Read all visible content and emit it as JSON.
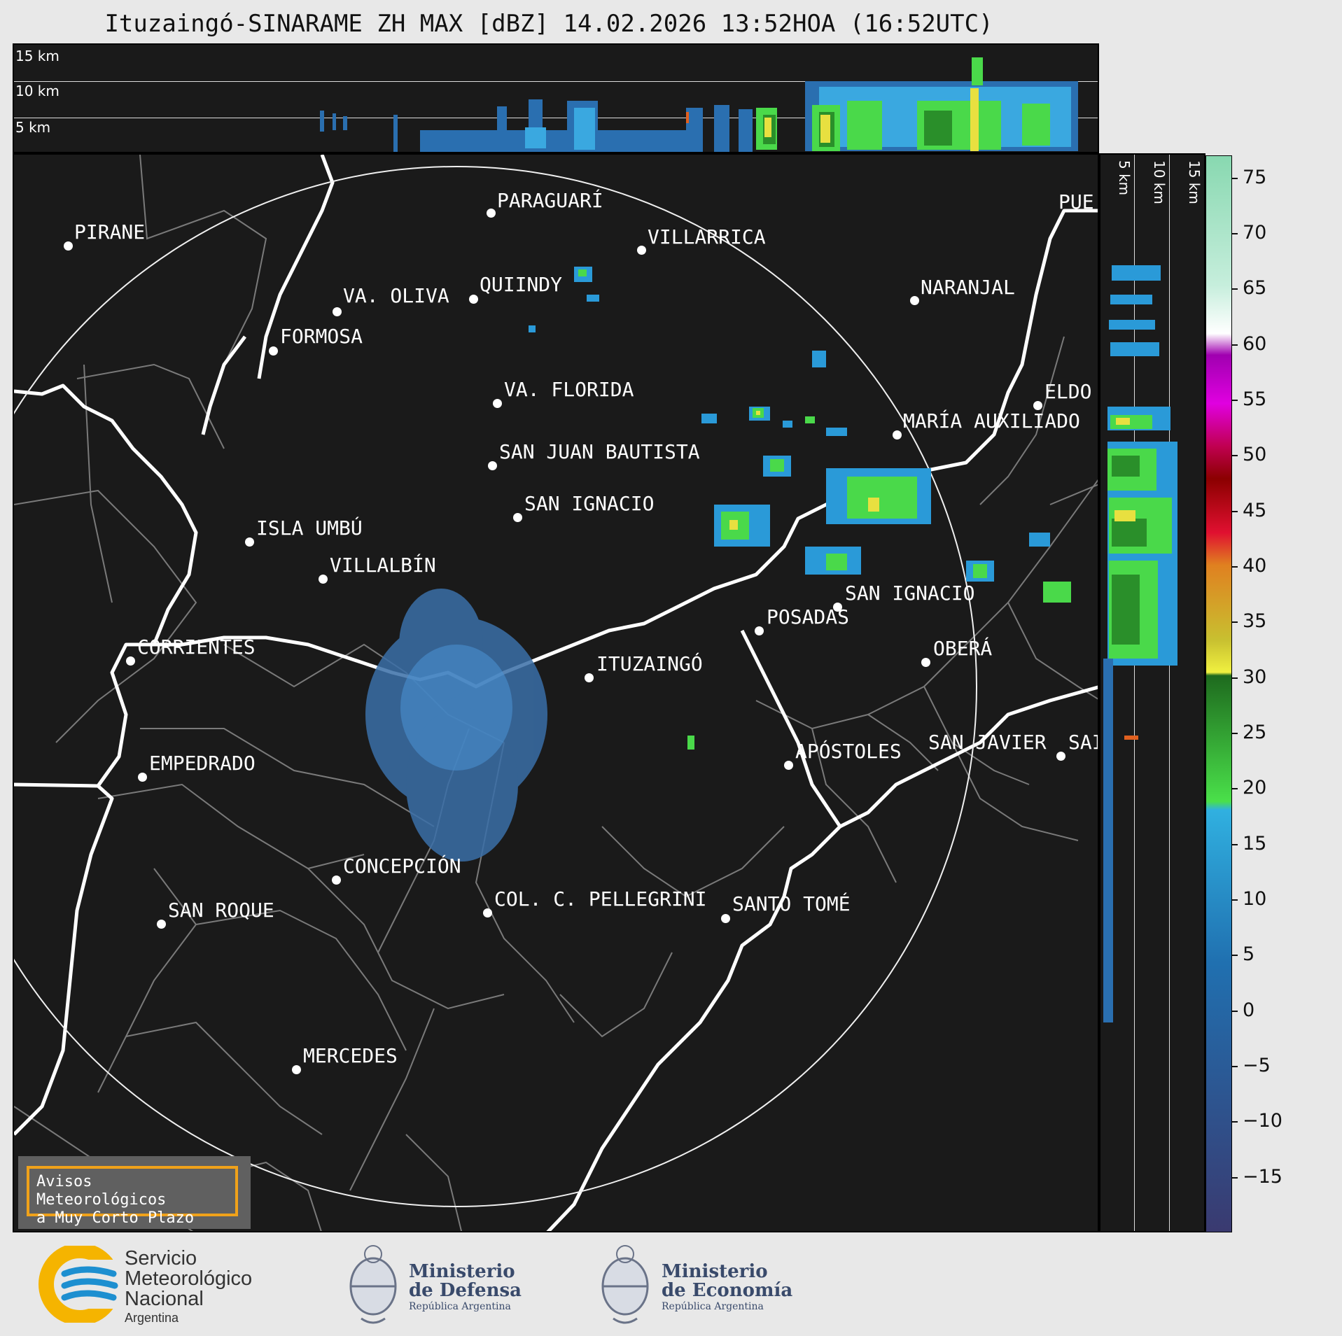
{
  "title": "Ituzaingó-SINARAME ZH MAX [dBZ] 14.02.2026 13:52HOA (16:52UTC)",
  "top_panel": {
    "heights": [
      "15 km",
      "10 km",
      "5 km"
    ]
  },
  "side_panel": {
    "heights": [
      "5 km",
      "10 km",
      "15 km"
    ]
  },
  "cities": [
    {
      "name": "PARAGUARÍ"
    },
    {
      "name": "VILLARRICA"
    },
    {
      "name": "PIRANE"
    },
    {
      "name": "QUIINDY"
    },
    {
      "name": "VA. OLIVA"
    },
    {
      "name": "NARANJAL"
    },
    {
      "name": "FORMOSA"
    },
    {
      "name": "PUE"
    },
    {
      "name": "VA. FLORIDA"
    },
    {
      "name": "ELDO"
    },
    {
      "name": "MARÍA AUXILIADO"
    },
    {
      "name": "SAN JUAN BAUTISTA"
    },
    {
      "name": "SAN IGNACIO"
    },
    {
      "name": "ISLA UMBÚ"
    },
    {
      "name": "VILLALBÍN"
    },
    {
      "name": "SAN IGNACIO"
    },
    {
      "name": "POSADAS"
    },
    {
      "name": "CORRIENTES"
    },
    {
      "name": "ITUZAINGÓ"
    },
    {
      "name": "OBERÁ"
    },
    {
      "name": "EMPEDRADO"
    },
    {
      "name": "APÓSTOLES"
    },
    {
      "name": "SAN JAVIER"
    },
    {
      "name": "SAI"
    },
    {
      "name": "CONCEPCIÓN"
    },
    {
      "name": "COL. C. PELLEGRINI"
    },
    {
      "name": "SANTO TOMÉ"
    },
    {
      "name": "SAN ROQUE"
    },
    {
      "name": "MERCEDES"
    }
  ],
  "colorbar": {
    "ticks": [
      "75",
      "70",
      "65",
      "60",
      "55",
      "50",
      "45",
      "40",
      "35",
      "30",
      "25",
      "20",
      "15",
      "10",
      "5",
      "0",
      "−5",
      "−10",
      "−15"
    ],
    "range": [
      -20,
      77
    ]
  },
  "aviso": {
    "line1": "Avisos Meteorológicos",
    "line2": "a Muy Corto Plazo"
  },
  "logos": {
    "smn": {
      "line1": "Servicio",
      "line2": "Meteorológico",
      "line3": "Nacional",
      "line4": "Argentina"
    },
    "defensa": {
      "line1": "Ministerio",
      "line2": "de Defensa",
      "line3": "República Argentina"
    },
    "economia": {
      "line1": "Ministerio",
      "line2": "de Economía",
      "line3": "República Argentina"
    }
  },
  "colors": {
    "panel_bg": "#1a1a1a",
    "page_bg": "#e8e8e8",
    "accent": "#f0a21a",
    "smn_blue": "#1d8fd0",
    "smn_yellow": "#f5b400"
  }
}
